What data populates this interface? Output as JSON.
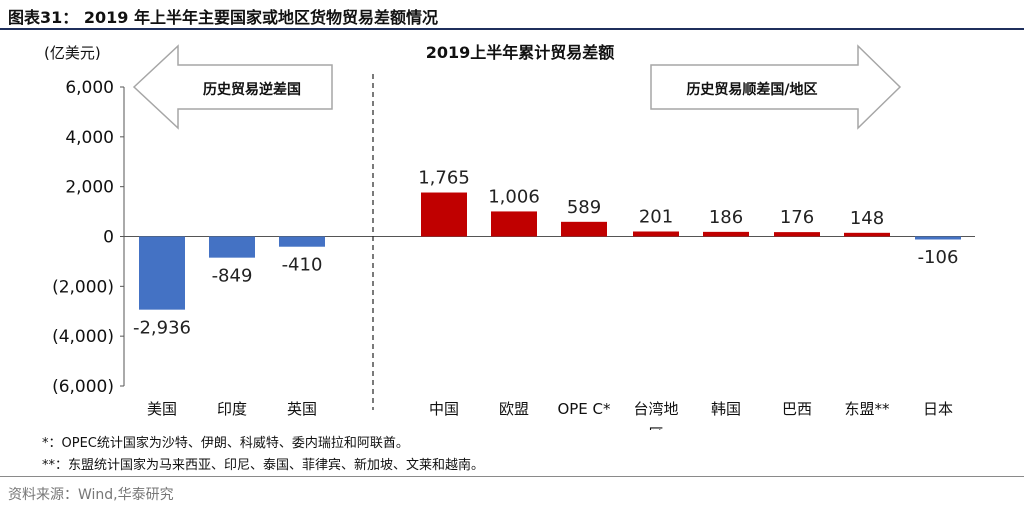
{
  "figure_title": "图表31： 2019 年上半年主要国家或地区货物贸易差额情况",
  "chart_data": {
    "type": "bar",
    "title": "2019上半年累计贸易差额",
    "ylabel": "(亿美元)",
    "xlabel": "",
    "ylim": [
      -6000,
      6000
    ],
    "yticks": [
      6000,
      4000,
      2000,
      0,
      -2000,
      -4000,
      -6000
    ],
    "ytick_labels": [
      "6,000",
      "4,000",
      "2,000",
      "0",
      "(2,000)",
      "(4,000)",
      "(6,000)"
    ],
    "grid": false,
    "categories": [
      "美国",
      "印度",
      "英国",
      "中国",
      "欧盟",
      "OPEC*",
      "台湾地区",
      "韩国",
      "巴西",
      "东盟**",
      "日本"
    ],
    "category_labels": [
      "美国",
      "印度",
      "英国",
      "中国",
      "欧盟",
      "OPE C*",
      "台湾地\n区",
      "韩国",
      "巴西",
      "东盟**",
      "日本"
    ],
    "values": [
      -2936,
      -849,
      -410,
      1765,
      1006,
      589,
      201,
      186,
      176,
      148,
      -106
    ],
    "value_labels": [
      "-2,936",
      "-849",
      "-410",
      "1,765",
      "1,006",
      "589",
      "201",
      "186",
      "176",
      "148",
      "-106"
    ],
    "group_labels": {
      "left": "历史贸易逆差国",
      "right": "历史贸易顺差国/地区"
    },
    "colors": {
      "deficit_group": "#4472c4",
      "surplus_group": "#c00000"
    }
  },
  "notes": [
    "*：OPEC统计国家为沙特、伊朗、科威特、委内瑞拉和阿联酋。",
    "**：东盟统计国家为马来西亚、印尼、泰国、菲律宾、新加坡、文莱和越南。"
  ],
  "source": "资料来源：Wind,华泰研究"
}
